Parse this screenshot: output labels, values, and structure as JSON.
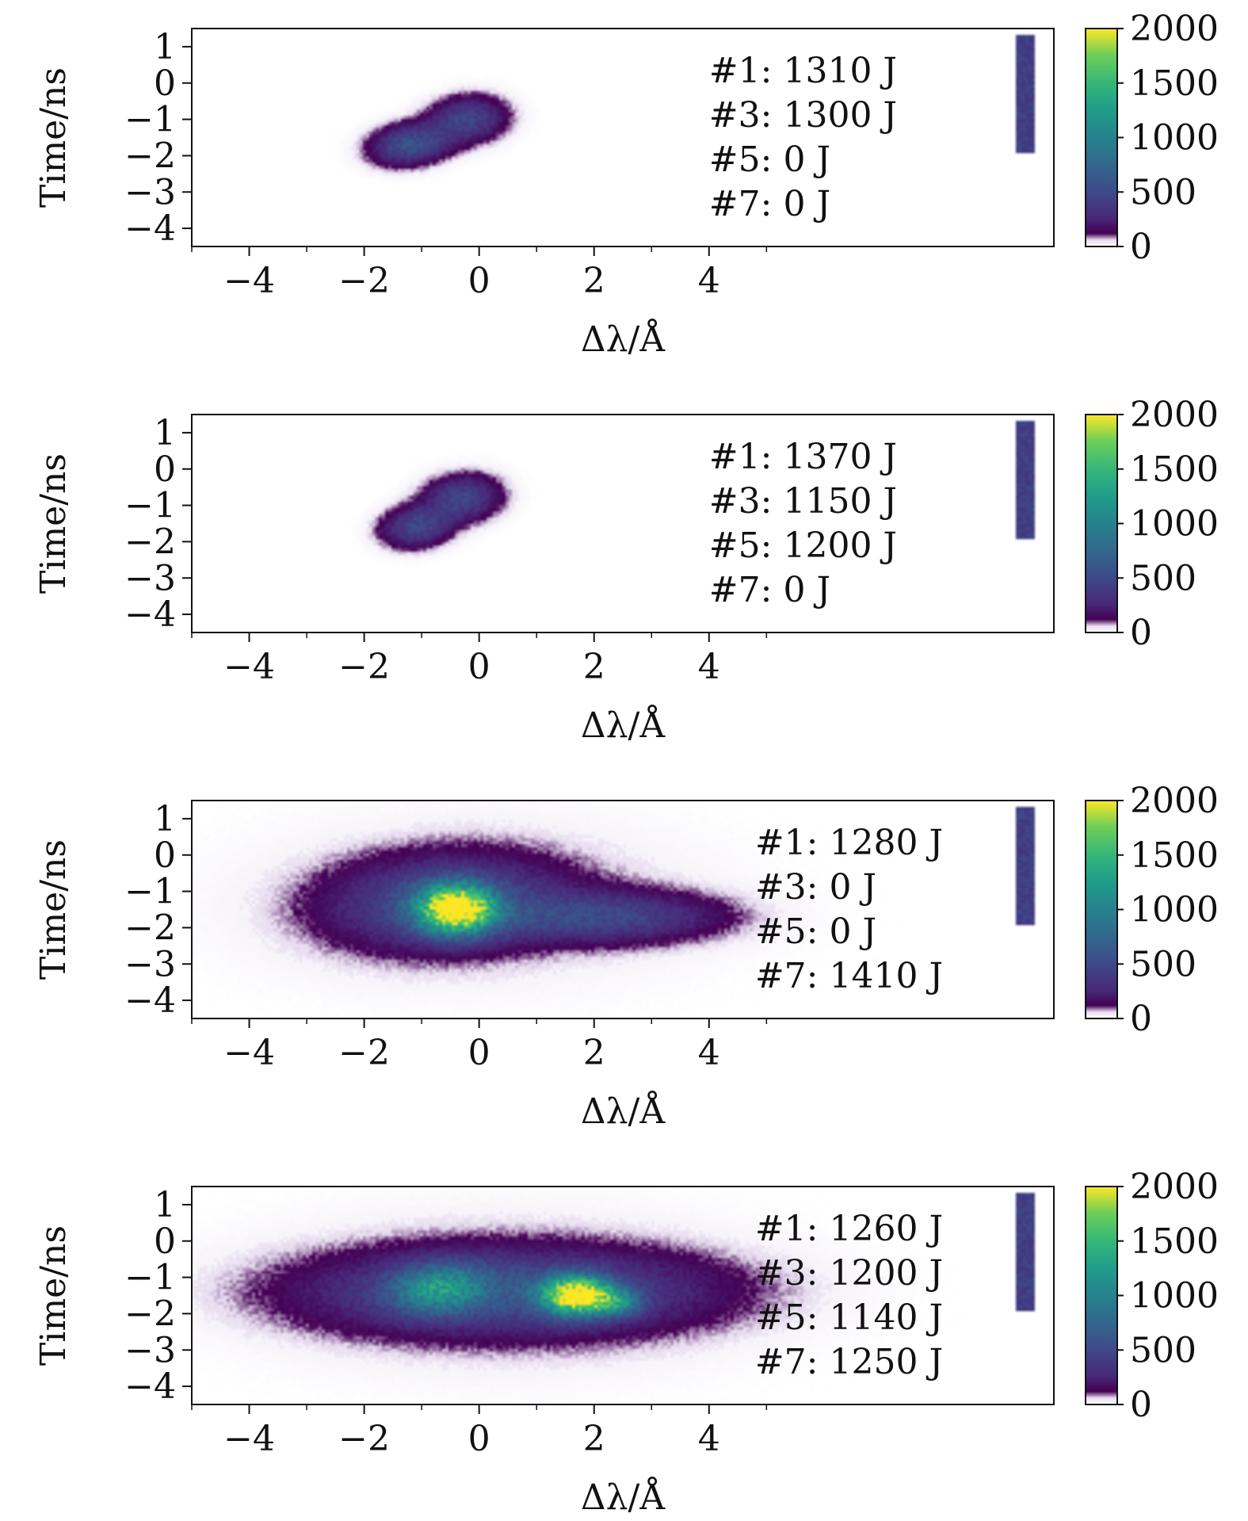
{
  "chart_data": [
    {
      "type": "heatmap",
      "xlabel": "Δλ/Å",
      "ylabel": "Time/ns",
      "xticks": [
        -4,
        -2,
        0,
        2,
        4
      ],
      "xlim": [
        -5.0,
        10.0
      ],
      "yticks": [
        -4,
        -3,
        -2,
        -1,
        0,
        1
      ],
      "ylim": [
        1.5,
        -4.5
      ],
      "colorbar": {
        "ticks": [
          0,
          500,
          1000,
          1500,
          2000
        ],
        "range": [
          0,
          2000
        ],
        "colormap": "viridis"
      },
      "annotations": [
        "#1: 1310 J",
        "#3: 1300 J",
        "#5: 0 J",
        "#7: 0 J"
      ],
      "blobs": [
        {
          "x": -1.2,
          "y": -1.7,
          "sx": 0.45,
          "sy": 0.35,
          "peak": 560,
          "rot": 0.35
        },
        {
          "x": -0.2,
          "y": -1.0,
          "sx": 0.45,
          "sy": 0.4,
          "peak": 460,
          "rot": 0.5
        }
      ],
      "fiducial": {
        "x": 9.5,
        "y_range": [
          -1.9,
          1.3
        ],
        "level": 420
      }
    },
    {
      "type": "heatmap",
      "xlabel": "Δλ/Å",
      "ylabel": "Time/ns",
      "xticks": [
        -4,
        -2,
        0,
        2,
        4
      ],
      "xlim": [
        -5.0,
        10.0
      ],
      "yticks": [
        -4,
        -3,
        -2,
        -1,
        0,
        1
      ],
      "ylim": [
        1.5,
        -4.5
      ],
      "colorbar": {
        "ticks": [
          0,
          500,
          1000,
          1500,
          2000
        ],
        "range": [
          0,
          2000
        ],
        "colormap": "viridis"
      },
      "annotations": [
        "#1: 1370 J",
        "#3: 1150 J",
        "#5: 1200 J",
        "#7: 0 J"
      ],
      "blobs": [
        {
          "x": -1.1,
          "y": -1.6,
          "sx": 0.4,
          "sy": 0.35,
          "peak": 480,
          "rot": 0.5
        },
        {
          "x": -0.3,
          "y": -0.8,
          "sx": 0.45,
          "sy": 0.4,
          "peak": 470,
          "rot": 0.6
        }
      ],
      "fiducial": {
        "x": 9.5,
        "y_range": [
          -1.9,
          1.3
        ],
        "level": 420
      }
    },
    {
      "type": "heatmap",
      "xlabel": "Δλ/Å",
      "ylabel": "Time/ns",
      "xticks": [
        -4,
        -2,
        0,
        2,
        4
      ],
      "xlim": [
        -5.0,
        10.0
      ],
      "yticks": [
        -4,
        -3,
        -2,
        -1,
        0,
        1
      ],
      "ylim": [
        1.5,
        -4.5
      ],
      "colorbar": {
        "ticks": [
          0,
          500,
          1000,
          1500,
          2000
        ],
        "range": [
          0,
          2000
        ],
        "colormap": "viridis"
      },
      "annotations": [
        "#1: 1280 J",
        "#3: 0 J",
        "#5: 0 J",
        "#7: 1410 J"
      ],
      "blobs": [
        {
          "x": -0.4,
          "y": -1.5,
          "sx": 0.45,
          "sy": 0.45,
          "peak": 1950,
          "rot": 0
        },
        {
          "x": -0.6,
          "y": -1.3,
          "sx": 1.3,
          "sy": 0.8,
          "peak": 500,
          "rot": 0.1
        },
        {
          "x": 2.2,
          "y": -1.7,
          "sx": 1.3,
          "sy": 0.45,
          "peak": 430,
          "rot": 0
        },
        {
          "x": 0.0,
          "y": -1.3,
          "sx": 2.8,
          "sy": 1.6,
          "peak": 70,
          "rot": 0
        }
      ],
      "fiducial": {
        "x": 9.5,
        "y_range": [
          -1.9,
          1.3
        ],
        "level": 420
      }
    },
    {
      "type": "heatmap",
      "xlabel": "Δλ/Å",
      "ylabel": "Time/ns",
      "xticks": [
        -4,
        -2,
        0,
        2,
        4
      ],
      "xlim": [
        -5.0,
        10.0
      ],
      "yticks": [
        -4,
        -3,
        -2,
        -1,
        0,
        1
      ],
      "ylim": [
        1.5,
        -4.5
      ],
      "colorbar": {
        "ticks": [
          0,
          500,
          1000,
          1500,
          2000
        ],
        "range": [
          0,
          2000
        ],
        "colormap": "viridis"
      },
      "annotations": [
        "#1: 1260 J",
        "#3: 1200 J",
        "#5: 1140 J",
        "#7: 1250 J"
      ],
      "blobs": [
        {
          "x": 1.7,
          "y": -1.5,
          "sx": 0.4,
          "sy": 0.35,
          "peak": 1900,
          "rot": 0
        },
        {
          "x": 2.4,
          "y": -1.7,
          "sx": 0.3,
          "sy": 0.25,
          "peak": 700,
          "rot": 0
        },
        {
          "x": -0.7,
          "y": -1.3,
          "sx": 0.55,
          "sy": 0.45,
          "peak": 800,
          "rot": 0.3
        },
        {
          "x": 0.5,
          "y": -1.4,
          "sx": 2.3,
          "sy": 0.75,
          "peak": 520,
          "rot": 0
        },
        {
          "x": 0.5,
          "y": -1.4,
          "sx": 3.0,
          "sy": 1.6,
          "peak": 70,
          "rot": 0
        }
      ],
      "fiducial": {
        "x": 9.5,
        "y_range": [
          -1.9,
          1.3
        ],
        "level": 420
      }
    }
  ]
}
